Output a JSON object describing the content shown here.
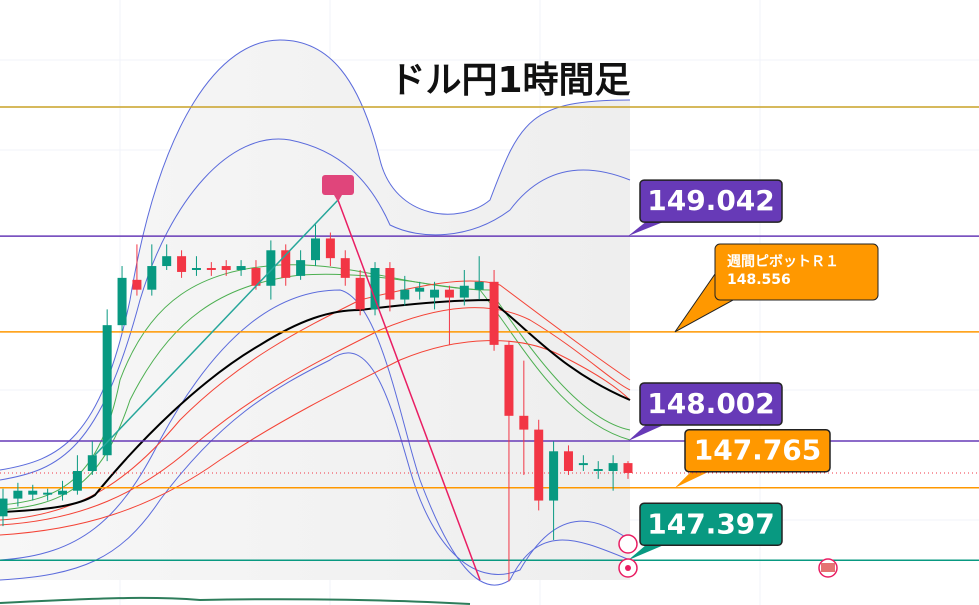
{
  "chart_data": {
    "type": "candlestick",
    "title": "ドル円1時間足",
    "ylim": [
      147.17,
      150.24
    ],
    "up_color": "#089981",
    "down_color": "#f23645",
    "open": [
      147.62,
      147.71,
      147.73,
      147.73,
      147.73,
      147.75,
      147.85,
      147.93,
      148.59,
      148.82,
      148.77,
      148.89,
      148.94,
      148.87,
      148.88,
      148.89,
      148.87,
      148.88,
      148.79,
      148.97,
      148.84,
      148.92,
      149.03,
      148.93,
      148.83,
      148.67,
      148.88,
      148.72,
      148.76,
      148.73,
      148.77,
      148.73,
      148.77,
      148.81,
      148.49,
      148.13,
      148.06,
      147.7,
      147.95,
      147.88,
      147.85,
      147.85,
      147.89
    ],
    "high": [
      147.76,
      147.79,
      147.78,
      147.76,
      147.8,
      147.93,
      148.0,
      148.67,
      148.89,
      149.0,
      149.0,
      149.0,
      148.97,
      148.94,
      148.91,
      148.92,
      148.92,
      148.92,
      149.02,
      149.0,
      148.97,
      149.1,
      149.06,
      148.97,
      148.87,
      148.91,
      148.91,
      148.84,
      148.81,
      148.81,
      148.79,
      148.87,
      148.94,
      148.87,
      148.51,
      148.41,
      148.11,
      148.0,
      147.98,
      147.93,
      147.9,
      147.93,
      147.9
    ],
    "low": [
      147.57,
      147.67,
      147.7,
      147.7,
      147.7,
      147.73,
      147.83,
      147.9,
      148.56,
      148.74,
      148.74,
      148.87,
      148.83,
      148.84,
      148.84,
      148.84,
      148.84,
      148.77,
      148.72,
      148.79,
      148.82,
      148.89,
      148.89,
      148.79,
      148.64,
      148.64,
      148.66,
      148.69,
      148.72,
      148.67,
      148.49,
      148.69,
      148.72,
      148.46,
      147.29,
      147.83,
      147.65,
      147.5,
      147.83,
      147.85,
      147.81,
      147.75,
      147.81
    ],
    "close": [
      147.71,
      147.75,
      147.75,
      147.74,
      147.75,
      147.85,
      147.93,
      148.59,
      148.83,
      148.77,
      148.89,
      148.94,
      148.86,
      148.88,
      148.87,
      148.87,
      148.89,
      148.79,
      148.97,
      148.83,
      148.92,
      149.03,
      148.93,
      148.83,
      148.67,
      148.88,
      148.72,
      148.77,
      148.78,
      148.77,
      148.73,
      148.79,
      148.81,
      148.49,
      148.13,
      148.06,
      147.7,
      147.95,
      147.85,
      147.89,
      147.86,
      147.89,
      147.84
    ],
    "levels": [
      {
        "value": 149.697,
        "color": "#c9a227"
      },
      {
        "value": 149.042,
        "color": "#673ab7"
      },
      {
        "value": 148.556,
        "color": "#ff9800",
        "label": "週間ピボットＲ１"
      },
      {
        "value": 148.002,
        "color": "#673ab7"
      },
      {
        "value": 147.765,
        "color": "#ff9800"
      },
      {
        "value": 147.397,
        "color": "#089981"
      }
    ],
    "current_price": {
      "value": 147.84,
      "color": "#f23645"
    }
  }
}
